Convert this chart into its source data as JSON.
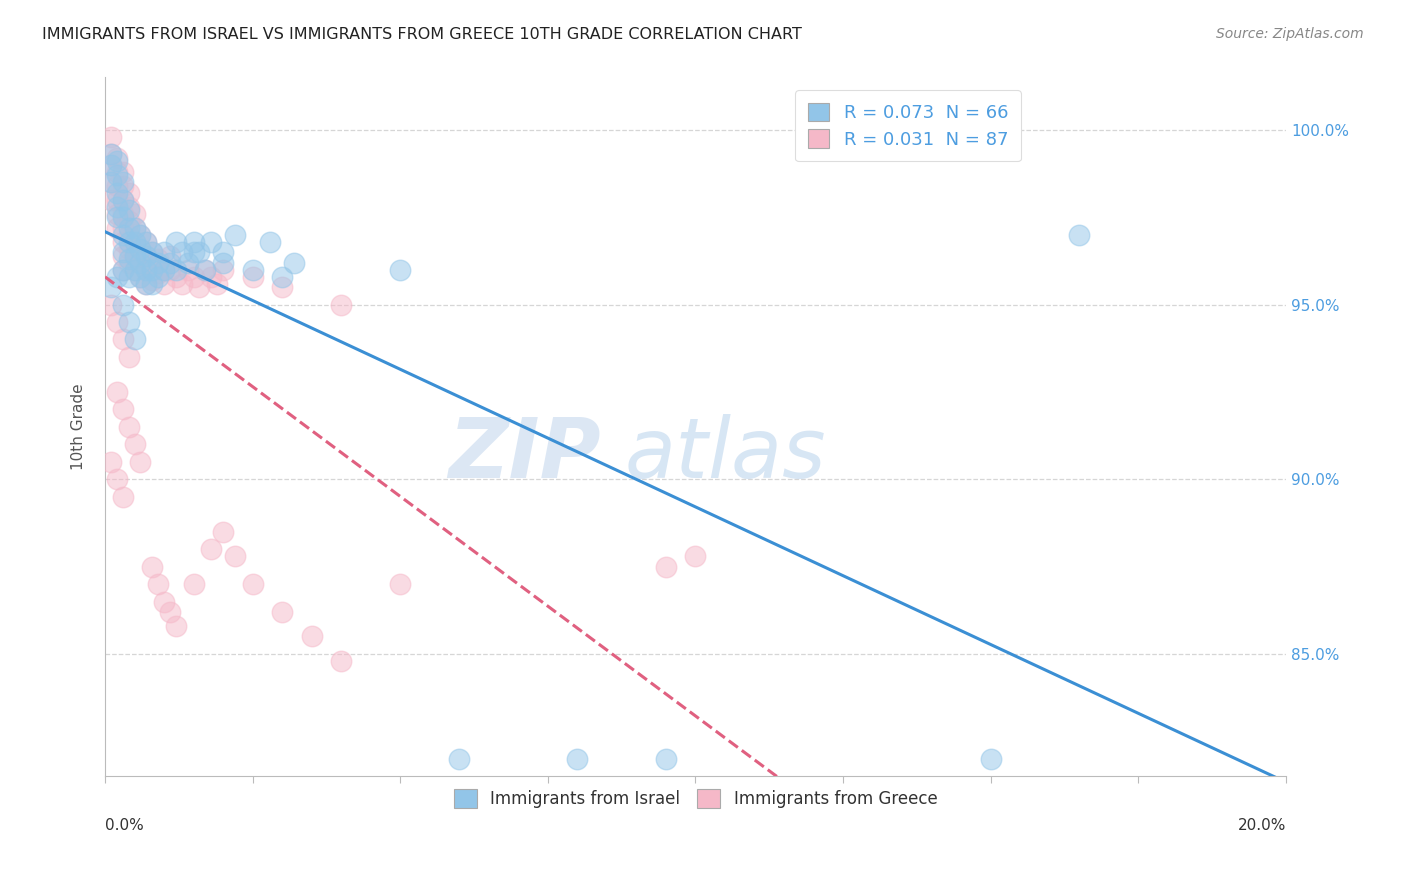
{
  "title": "IMMIGRANTS FROM ISRAEL VS IMMIGRANTS FROM GREECE 10TH GRADE CORRELATION CHART",
  "source": "Source: ZipAtlas.com",
  "ylabel": "10th Grade",
  "y_ticks_right": [
    "100.0%",
    "95.0%",
    "90.0%",
    "85.0%"
  ],
  "y_tick_vals": [
    1.0,
    0.95,
    0.9,
    0.85
  ],
  "x_range": [
    0.0,
    0.2
  ],
  "y_range": [
    0.815,
    1.015
  ],
  "israel_color": "#92c5e8",
  "greece_color": "#f5b8c8",
  "israel_R": 0.073,
  "israel_N": 66,
  "greece_R": 0.031,
  "greece_N": 87,
  "watermark_zip": "ZIP",
  "watermark_atlas": "atlas",
  "background_color": "#ffffff",
  "grid_color": "#cccccc",
  "trend_blue": "#3b8fd4",
  "trend_pink": "#e06080",
  "legend_text_color": "#4d9de0",
  "right_axis_color": "#4d9de0",
  "israel_x": [
    0.001,
    0.001,
    0.001,
    0.002,
    0.002,
    0.002,
    0.002,
    0.002,
    0.003,
    0.003,
    0.003,
    0.003,
    0.003,
    0.003,
    0.004,
    0.004,
    0.004,
    0.004,
    0.004,
    0.005,
    0.005,
    0.005,
    0.005,
    0.006,
    0.006,
    0.006,
    0.006,
    0.007,
    0.007,
    0.007,
    0.007,
    0.008,
    0.008,
    0.008,
    0.009,
    0.009,
    0.01,
    0.01,
    0.011,
    0.012,
    0.013,
    0.014,
    0.015,
    0.016,
    0.017,
    0.018,
    0.02,
    0.022,
    0.025,
    0.028,
    0.032,
    0.001,
    0.002,
    0.003,
    0.004,
    0.005,
    0.05,
    0.03,
    0.015,
    0.02,
    0.012,
    0.06,
    0.08,
    0.095,
    0.15,
    0.165
  ],
  "israel_y": [
    0.985,
    0.99,
    0.993,
    0.982,
    0.987,
    0.991,
    0.978,
    0.975,
    0.98,
    0.985,
    0.97,
    0.975,
    0.965,
    0.96,
    0.972,
    0.977,
    0.968,
    0.963,
    0.958,
    0.968,
    0.972,
    0.964,
    0.96,
    0.966,
    0.97,
    0.962,
    0.958,
    0.964,
    0.968,
    0.96,
    0.956,
    0.965,
    0.96,
    0.956,
    0.962,
    0.958,
    0.96,
    0.965,
    0.962,
    0.96,
    0.965,
    0.962,
    0.968,
    0.965,
    0.96,
    0.968,
    0.962,
    0.97,
    0.96,
    0.968,
    0.962,
    0.955,
    0.958,
    0.95,
    0.945,
    0.94,
    0.96,
    0.958,
    0.965,
    0.965,
    0.968,
    0.82,
    0.82,
    0.82,
    0.82,
    0.97
  ],
  "greece_x": [
    0.001,
    0.001,
    0.001,
    0.001,
    0.001,
    0.002,
    0.002,
    0.002,
    0.002,
    0.002,
    0.002,
    0.003,
    0.003,
    0.003,
    0.003,
    0.003,
    0.003,
    0.003,
    0.003,
    0.004,
    0.004,
    0.004,
    0.004,
    0.004,
    0.004,
    0.005,
    0.005,
    0.005,
    0.005,
    0.005,
    0.006,
    0.006,
    0.006,
    0.006,
    0.007,
    0.007,
    0.007,
    0.007,
    0.008,
    0.008,
    0.008,
    0.009,
    0.009,
    0.01,
    0.01,
    0.011,
    0.011,
    0.012,
    0.013,
    0.014,
    0.015,
    0.016,
    0.017,
    0.018,
    0.019,
    0.02,
    0.001,
    0.002,
    0.003,
    0.004,
    0.002,
    0.003,
    0.004,
    0.005,
    0.006,
    0.001,
    0.002,
    0.003,
    0.008,
    0.009,
    0.01,
    0.011,
    0.012,
    0.015,
    0.018,
    0.02,
    0.022,
    0.025,
    0.03,
    0.035,
    0.04,
    0.025,
    0.03,
    0.04,
    0.05,
    0.1,
    0.095
  ],
  "greece_y": [
    0.998,
    0.993,
    0.99,
    0.985,
    0.98,
    0.992,
    0.988,
    0.984,
    0.98,
    0.976,
    0.972,
    0.988,
    0.984,
    0.98,
    0.976,
    0.972,
    0.968,
    0.964,
    0.96,
    0.982,
    0.978,
    0.974,
    0.97,
    0.966,
    0.962,
    0.976,
    0.972,
    0.968,
    0.964,
    0.96,
    0.97,
    0.966,
    0.962,
    0.958,
    0.968,
    0.964,
    0.96,
    0.956,
    0.965,
    0.961,
    0.957,
    0.963,
    0.959,
    0.96,
    0.956,
    0.964,
    0.96,
    0.958,
    0.956,
    0.96,
    0.958,
    0.955,
    0.96,
    0.958,
    0.956,
    0.96,
    0.95,
    0.945,
    0.94,
    0.935,
    0.925,
    0.92,
    0.915,
    0.91,
    0.905,
    0.905,
    0.9,
    0.895,
    0.875,
    0.87,
    0.865,
    0.862,
    0.858,
    0.87,
    0.88,
    0.885,
    0.878,
    0.87,
    0.862,
    0.855,
    0.848,
    0.958,
    0.955,
    0.95,
    0.87,
    0.878,
    0.875
  ]
}
